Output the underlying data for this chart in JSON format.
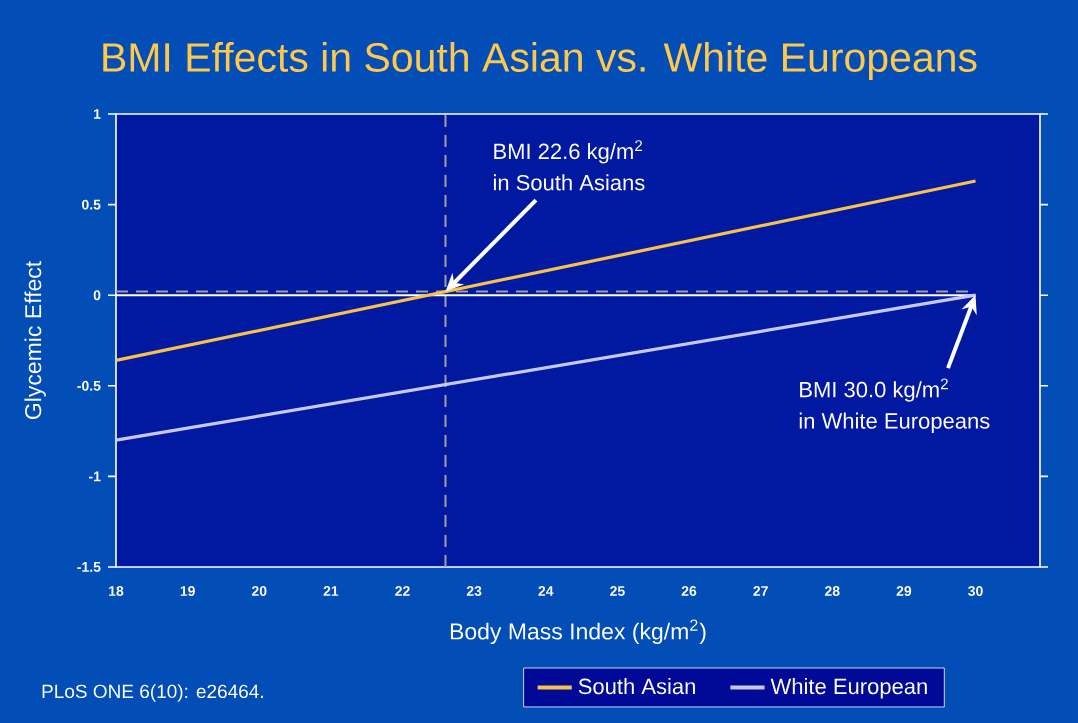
{
  "chart_data": {
    "type": "line",
    "title": "BMI Effects in South Asian vs. White Europeans",
    "xlabel": "Body Mass Index (kg/m$^{2}$)",
    "ylabel": "Glycemic Effect",
    "x": [
      18,
      30
    ],
    "series": [
      {
        "name": "South Asian",
        "color": "#f8c14a",
        "values": [
          -0.36,
          0.63
        ]
      },
      {
        "name": "White European",
        "color": "#c8c8f8",
        "values": [
          -0.8,
          0.0
        ]
      }
    ],
    "xlim": [
      18,
      30.9
    ],
    "xticks": [
      18,
      19,
      20,
      21,
      22,
      23,
      24,
      25,
      26,
      27,
      28,
      29,
      30
    ],
    "ylim": [
      -1.5,
      1
    ],
    "yticks": [
      -1.5,
      -1,
      -0.5,
      0,
      0.5,
      1
    ],
    "ref_lines": [
      {
        "axis": "x",
        "value": 22.6,
        "color": "#a0a0a0",
        "line_style": "dashed"
      },
      {
        "axis": "y",
        "value": 0,
        "color": "#ffffff",
        "line_style": "solid"
      },
      {
        "axis": "y",
        "value": 0.02,
        "color": "#a0a0a0",
        "line_style": "dashed"
      }
    ],
    "annotations": [
      "BMI 22.6 kg/m$^{2}$",
      "in South Asians",
      "BMI 30.0 kg/m$^{2}$",
      "in White Europeans",
      "PLoS ONE 6(10): e26464."
    ],
    "legend": "bottom",
    "grid": false,
    "marker": "none",
    "line_style": "solid"
  }
}
